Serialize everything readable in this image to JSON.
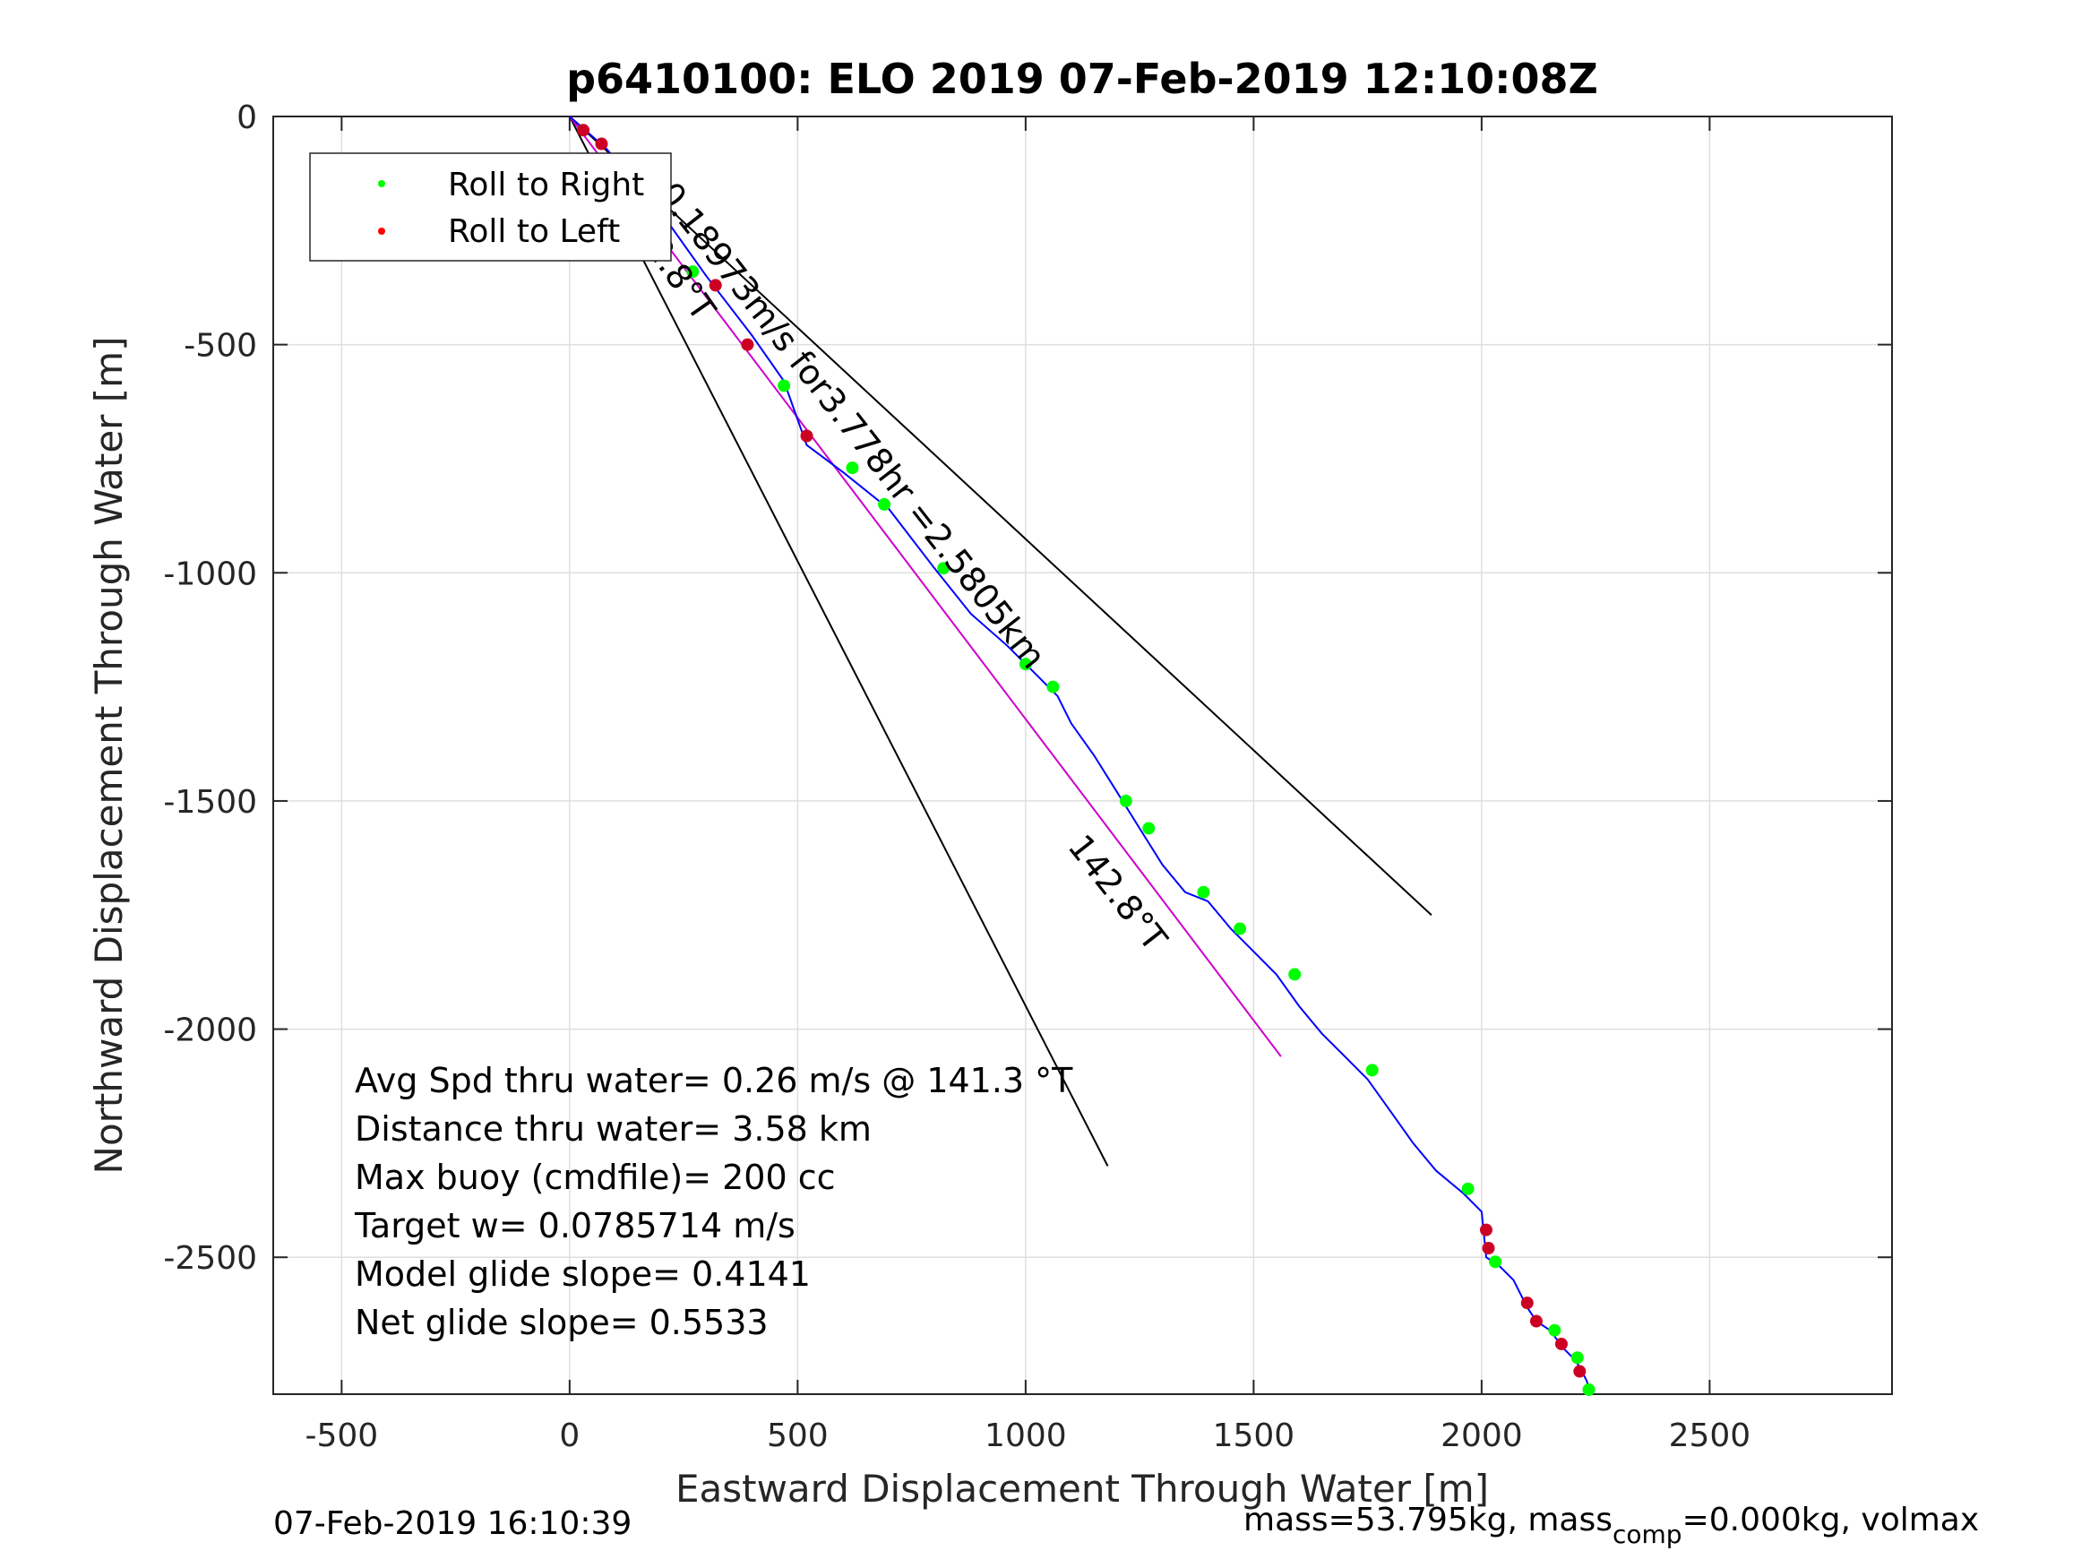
{
  "chart_data": {
    "type": "line",
    "title": "p6410100: ELO 2019 07-Feb-2019 12:10:08Z",
    "xlabel": "Eastward Displacement Through Water [m]",
    "ylabel": "Northward Displacement Through Water [m]",
    "xlim": [
      -650,
      2900
    ],
    "ylim": [
      -2800,
      0
    ],
    "xticks": [
      -500,
      0,
      500,
      1000,
      1500,
      2000,
      2500
    ],
    "yticks": [
      0,
      -500,
      -1000,
      -1500,
      -2000,
      -2500
    ],
    "grid": true,
    "legend": {
      "placement": "top-left",
      "entries": [
        {
          "label": "Roll to Right",
          "color": "#00ff00"
        },
        {
          "label": "Roll to Left",
          "color": "#ff0000"
        }
      ]
    },
    "track": {
      "color": "#0000ff",
      "x": [
        0,
        80,
        200,
        300,
        400,
        470,
        520,
        600,
        700,
        800,
        880,
        960,
        1020,
        1070,
        1100,
        1150,
        1200,
        1250,
        1300,
        1350,
        1400,
        1450,
        1500,
        1550,
        1600,
        1650,
        1700,
        1750,
        1800,
        1850,
        1900,
        1960,
        2000,
        2010,
        2040,
        2070,
        2100,
        2120,
        2150,
        2180,
        2200,
        2215,
        2230,
        2240
      ],
      "y": [
        0,
        -70,
        -210,
        -350,
        -480,
        -580,
        -720,
        -780,
        -860,
        -990,
        -1090,
        -1160,
        -1220,
        -1270,
        -1330,
        -1400,
        -1480,
        -1560,
        -1640,
        -1700,
        -1720,
        -1780,
        -1830,
        -1880,
        -1950,
        -2010,
        -2060,
        -2110,
        -2180,
        -2250,
        -2310,
        -2360,
        -2400,
        -2500,
        -2520,
        -2550,
        -2610,
        -2640,
        -2660,
        -2700,
        -2720,
        -2740,
        -2770,
        -2800
      ]
    },
    "roll_right_x": [
      270,
      470,
      620,
      690,
      820,
      1000,
      1060,
      1220,
      1270,
      1390,
      1470,
      1590,
      1760,
      1970,
      2030,
      2160,
      2210,
      2235
    ],
    "roll_right_y": [
      -340,
      -590,
      -770,
      -850,
      -990,
      -1200,
      -1250,
      -1500,
      -1560,
      -1700,
      -1780,
      -1880,
      -2090,
      -2350,
      -2510,
      -2660,
      -2720,
      -2790
    ],
    "roll_left_x": [
      30,
      70,
      320,
      390,
      520,
      2010,
      2015,
      2100,
      2120,
      2175,
      2215
    ],
    "roll_left_y": [
      -30,
      -60,
      -370,
      -500,
      -700,
      -2440,
      -2480,
      -2600,
      -2640,
      -2690,
      -2750
    ],
    "cone_lines": [
      {
        "color": "#000000",
        "x": [
          0,
          1890
        ],
        "y": [
          0,
          -1750
        ]
      },
      {
        "color": "#000000",
        "x": [
          0,
          1180
        ],
        "y": [
          0,
          -2300
        ]
      }
    ],
    "heading_line": {
      "color": "#cc00cc",
      "x": [
        0,
        1560
      ],
      "y": [
        0,
        -2060
      ]
    },
    "annotations": [
      {
        "text": "0.18973m/s for3.778hr =2.5805km",
        "x": 190,
        "y": -170,
        "angle": 52
      },
      {
        "text": "142.8°T",
        "x": 110,
        "y": -210,
        "angle": 55
      },
      {
        "text": "142.8°T",
        "x": 1090,
        "y": -1600,
        "angle": 52
      }
    ],
    "stats": [
      "Avg Spd thru water=  0.26 m/s @ 141.3 °T",
      "Distance thru water=  3.58 km",
      "Max buoy (cmdfile)= 200 cc",
      "Target w= 0.0785714 m/s",
      "Model glide slope= 0.4141",
      "Net glide slope= 0.5533"
    ]
  },
  "footer": {
    "left": "07-Feb-2019 16:10:39",
    "right_prefix": "mass=53.795kg, mass",
    "right_sub": "comp",
    "right_suffix": "=0.000kg, volmax"
  }
}
